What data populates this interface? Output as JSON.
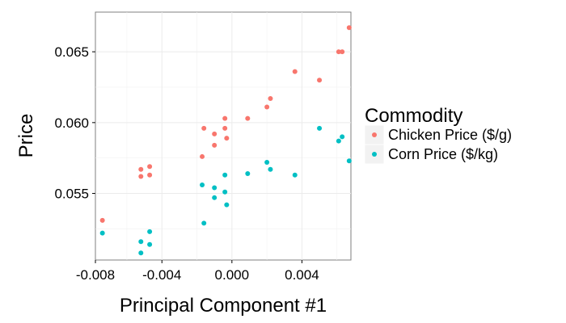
{
  "chart_data": {
    "type": "scatter",
    "xlabel": "Principal Component #1",
    "ylabel": "Price",
    "xlim": [
      -0.0078,
      0.0068
    ],
    "ylim": [
      0.0503,
      0.0678
    ],
    "x_ticks": [
      {
        "value": -0.008,
        "label": "-0.008"
      },
      {
        "value": -0.004,
        "label": "-0.004"
      },
      {
        "value": 0.0,
        "label": "0.000"
      },
      {
        "value": 0.004,
        "label": "0.004"
      }
    ],
    "x_minor_ticks": [
      -0.006,
      -0.002,
      0.002,
      0.006
    ],
    "y_ticks": [
      {
        "value": 0.055,
        "label": "0.055"
      },
      {
        "value": 0.06,
        "label": "0.060"
      },
      {
        "value": 0.065,
        "label": "0.065"
      }
    ],
    "y_minor_ticks": [
      0.0525,
      0.0575,
      0.0625
    ],
    "grid": true,
    "legend": {
      "title": "Commodity",
      "placement": "right"
    },
    "series": [
      {
        "name": "Chicken Price ($/g)",
        "color": "#F8766D",
        "points": [
          {
            "x": -0.0074,
            "y": 0.0531
          },
          {
            "x": -0.0052,
            "y": 0.0567
          },
          {
            "x": -0.0052,
            "y": 0.0562
          },
          {
            "x": -0.0047,
            "y": 0.0569
          },
          {
            "x": -0.0047,
            "y": 0.0563
          },
          {
            "x": -0.0017,
            "y": 0.0576
          },
          {
            "x": -0.0016,
            "y": 0.0596
          },
          {
            "x": -0.001,
            "y": 0.0592
          },
          {
            "x": -0.001,
            "y": 0.0584
          },
          {
            "x": -0.0004,
            "y": 0.0603
          },
          {
            "x": -0.0004,
            "y": 0.0596
          },
          {
            "x": -0.0003,
            "y": 0.0589
          },
          {
            "x": 0.0009,
            "y": 0.0603
          },
          {
            "x": 0.002,
            "y": 0.0611
          },
          {
            "x": 0.0022,
            "y": 0.0617
          },
          {
            "x": 0.0036,
            "y": 0.0636
          },
          {
            "x": 0.005,
            "y": 0.063
          },
          {
            "x": 0.0061,
            "y": 0.065
          },
          {
            "x": 0.0063,
            "y": 0.065
          },
          {
            "x": 0.0067,
            "y": 0.0667
          }
        ]
      },
      {
        "name": "Corn Price ($/kg)",
        "color": "#00BFC4",
        "points": [
          {
            "x": -0.0074,
            "y": 0.0522
          },
          {
            "x": -0.0052,
            "y": 0.0516
          },
          {
            "x": -0.0052,
            "y": 0.0508
          },
          {
            "x": -0.0047,
            "y": 0.0523
          },
          {
            "x": -0.0047,
            "y": 0.0514
          },
          {
            "x": -0.0017,
            "y": 0.0556
          },
          {
            "x": -0.0016,
            "y": 0.0529
          },
          {
            "x": -0.001,
            "y": 0.0554
          },
          {
            "x": -0.001,
            "y": 0.0547
          },
          {
            "x": -0.0004,
            "y": 0.0563
          },
          {
            "x": -0.0004,
            "y": 0.0551
          },
          {
            "x": -0.0003,
            "y": 0.0542
          },
          {
            "x": 0.0009,
            "y": 0.0564
          },
          {
            "x": 0.002,
            "y": 0.0572
          },
          {
            "x": 0.0022,
            "y": 0.0567
          },
          {
            "x": 0.0036,
            "y": 0.0563
          },
          {
            "x": 0.005,
            "y": 0.0596
          },
          {
            "x": 0.0061,
            "y": 0.0587
          },
          {
            "x": 0.0063,
            "y": 0.059
          },
          {
            "x": 0.0067,
            "y": 0.0573
          }
        ]
      }
    ]
  }
}
